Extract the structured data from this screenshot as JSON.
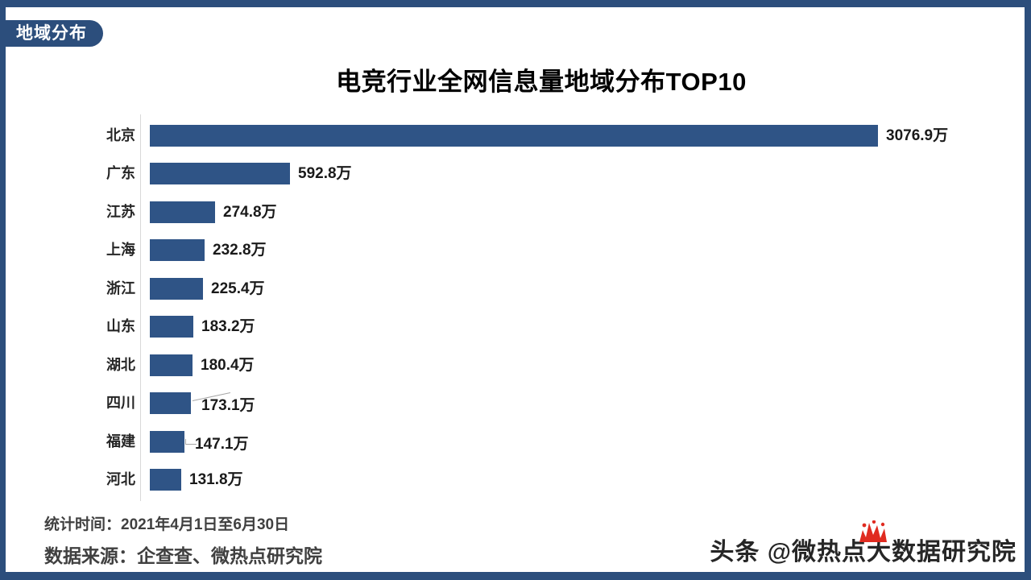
{
  "page": {
    "badge_label": "地域分布",
    "frame_color": "#2C4E7C"
  },
  "chart_data": {
    "type": "bar",
    "orientation": "horizontal",
    "title": "电竞行业全网信息量地域分布TOP10",
    "categories": [
      "北京",
      "广东",
      "江苏",
      "上海",
      "浙江",
      "山东",
      "湖北",
      "四川",
      "福建",
      "河北"
    ],
    "values": [
      3076.9,
      592.8,
      274.8,
      232.8,
      225.4,
      183.2,
      180.4,
      173.1,
      147.1,
      131.8
    ],
    "value_labels": [
      "3076.9万",
      "592.8万",
      "274.8万",
      "232.8万",
      "225.4万",
      "183.2万",
      "180.4万",
      "173.1万",
      "147.1万",
      "131.8万"
    ],
    "unit": "万",
    "xlim": [
      0,
      3076.9
    ],
    "bar_color": "#2F5486",
    "axis_color": "#D9D9D9",
    "gridlines": false,
    "legend": null,
    "callout_categories": [
      "四川",
      "福建"
    ]
  },
  "footer": {
    "stat_time": "统计时间：2021年4月1日至6月30日",
    "data_source": "数据来源：企查查、微热点研究院"
  },
  "watermark": {
    "text": "头条 @微热点大数据研究院",
    "icon": "red-rooster-comb-icon",
    "icon_color": "#E02B20"
  }
}
